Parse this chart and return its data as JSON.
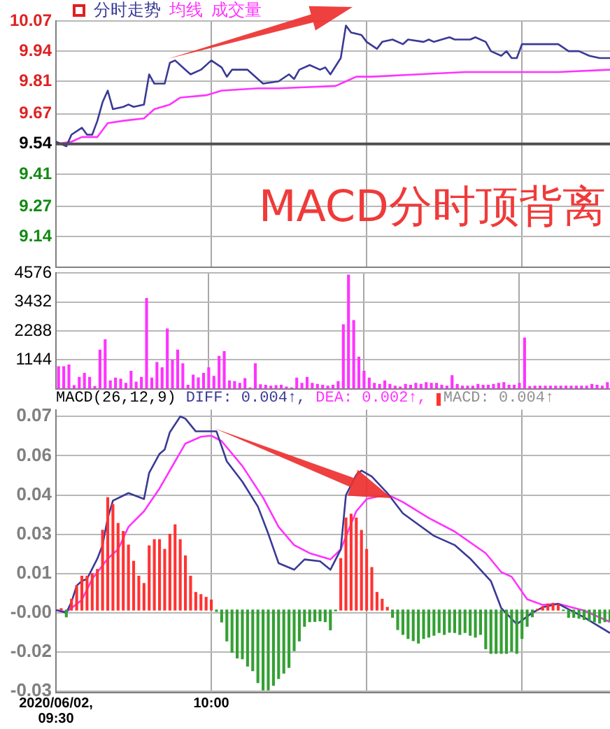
{
  "chart_data": [
    {
      "type": "line",
      "legend": "top left",
      "grid": true,
      "tick_labels": "y",
      "categories": [
        null,
        null,
        null,
        null,
        null,
        null,
        null,
        null,
        null,
        null,
        null,
        null,
        null,
        null,
        null,
        null,
        null,
        null,
        null,
        null,
        null,
        null,
        null,
        null,
        null,
        null,
        null,
        null,
        null,
        null,
        null,
        null,
        null,
        null,
        null,
        null,
        null,
        null,
        null,
        null,
        null,
        null,
        null,
        null,
        null,
        null,
        null,
        null,
        null,
        null,
        null,
        null,
        null,
        null,
        null,
        null,
        null,
        null,
        null,
        null,
        null,
        null,
        null,
        null,
        null,
        null,
        null,
        null,
        null,
        null,
        null,
        null,
        null,
        null,
        null,
        null,
        null,
        null,
        null,
        null,
        null,
        null,
        null,
        null,
        null,
        null,
        null,
        null,
        null,
        null,
        null,
        null,
        null,
        null,
        null,
        null,
        null,
        null,
        null,
        null,
        null,
        null,
        null,
        null,
        null,
        null,
        null,
        null
      ],
      "ylim": [
        9.01,
        10.07
      ],
      "yticks": [
        9.14,
        9.27,
        9.41,
        9.54,
        9.67,
        9.81,
        9.94,
        10.07
      ],
      "ref_lines": [
        {
          "axis": "y",
          "value": 9.54,
          "color": "#505050"
        }
      ],
      "annotations": [
        "MACD分时顶背离"
      ],
      "series": [
        {
          "name": "分时走势",
          "color": "#3a3a96",
          "values": [
            9.55,
            null,
            9.53,
            9.58,
            null,
            9.61,
            9.58,
            9.58,
            9.64,
            9.72,
            9.77,
            9.69,
            null,
            9.7,
            9.71,
            9.7,
            null,
            9.71,
            9.84,
            9.8,
            null,
            9.8,
            9.89,
            9.9,
            null,
            9.86,
            9.84,
            null,
            9.86,
            null,
            9.9,
            null,
            9.87,
            9.83,
            9.86,
            null,
            null,
            9.86,
            null,
            9.82,
            9.8,
            null,
            null,
            9.81,
            null,
            9.84,
            9.82,
            9.86,
            null,
            9.88,
            null,
            9.86,
            9.87,
            9.84,
            null,
            9.91,
            10.05,
            10.02,
            null,
            10.01,
            9.98,
            null,
            9.95,
            9.98,
            null,
            9.99,
            null,
            9.97,
            9.99,
            null,
            null,
            9.98,
            9.99,
            9.98,
            null,
            null,
            10.0,
            9.99,
            null,
            null,
            9.99,
            10.0,
            null,
            9.98,
            9.94,
            null,
            9.92,
            9.94,
            9.91,
            9.91,
            9.97,
            null,
            null,
            null,
            null,
            null,
            null,
            9.97,
            null,
            9.94,
            null,
            9.94,
            null,
            9.92,
            null,
            9.91,
            null,
            9.91
          ]
        },
        {
          "name": "均线",
          "color": "#ff33ff",
          "values": [
            9.54,
            null,
            null,
            9.55,
            null,
            9.57,
            null,
            null,
            9.57,
            null,
            9.63,
            null,
            null,
            9.64,
            null,
            null,
            null,
            9.65,
            null,
            9.69,
            null,
            null,
            9.71,
            null,
            9.74,
            null,
            null,
            null,
            null,
            9.75,
            null,
            null,
            9.77,
            null,
            null,
            null,
            null,
            null,
            null,
            9.78,
            null,
            null,
            null,
            9.78,
            null,
            null,
            null,
            null,
            null,
            null,
            null,
            null,
            null,
            null,
            9.79,
            null,
            9.81,
            null,
            9.83,
            null,
            null,
            9.83,
            null,
            null,
            null,
            null,
            null,
            null,
            null,
            null,
            9.84,
            null,
            null,
            null,
            null,
            null,
            null,
            null,
            null,
            9.85,
            null,
            null,
            null,
            null,
            null,
            null,
            null,
            null,
            9.85,
            null,
            null,
            null,
            null,
            null,
            null,
            null,
            null,
            9.85,
            null,
            null,
            null,
            null,
            null,
            null,
            null,
            null,
            null,
            9.86
          ]
        }
      ]
    },
    {
      "type": "bar",
      "legend": "top left",
      "grid": true,
      "tick_labels": "y",
      "categories": [
        null,
        null,
        null,
        null,
        null,
        null,
        null,
        null,
        null,
        null,
        null,
        null,
        null,
        null,
        null,
        null,
        null,
        null,
        null,
        null,
        null,
        null,
        null,
        null,
        null,
        null,
        null,
        null,
        null,
        null,
        null,
        null,
        null,
        null,
        null,
        null,
        null,
        null,
        null,
        null,
        null,
        null,
        null,
        null,
        null,
        null,
        null,
        null,
        null,
        null,
        null,
        null,
        null,
        null,
        null,
        null,
        null,
        null,
        null,
        null,
        null,
        null,
        null,
        null,
        null,
        null,
        null,
        null,
        null,
        null,
        null,
        null,
        null,
        null,
        null,
        null,
        null,
        null,
        null,
        null,
        null,
        null,
        null,
        null,
        null,
        null,
        null,
        null,
        null,
        null,
        null,
        null,
        null,
        null,
        null,
        null,
        null,
        null,
        null,
        null,
        null,
        null,
        null,
        null,
        null,
        null,
        null
      ],
      "ylim": [
        0,
        4576
      ],
      "yticks": [
        1144,
        2288,
        3432,
        4576
      ],
      "series": [
        {
          "name": "成交量",
          "color": "#ff33ff",
          "values": [
            870,
            870,
            940,
            120,
            450,
            610,
            450,
            90,
            1530,
            1940,
            310,
            420,
            380,
            210,
            690,
            260,
            450,
            3570,
            420,
            1040,
            830,
            2370,
            1130,
            1530,
            990,
            140,
            540,
            430,
            610,
            830,
            490,
            1280,
            1470,
            310,
            280,
            210,
            400,
            30,
            990,
            160,
            140,
            100,
            120,
            140,
            70,
            30,
            420,
            210,
            450,
            210,
            170,
            140,
            100,
            140,
            280,
            2530,
            4500,
            2700,
            1250,
            690,
            420,
            210,
            170,
            310,
            170,
            100,
            70,
            170,
            140,
            210,
            170,
            240,
            210,
            210,
            140,
            100,
            520,
            170,
            100,
            100,
            100,
            170,
            140,
            140,
            170,
            210,
            240,
            140,
            140,
            210,
            2010,
            90,
            100,
            100,
            100,
            100,
            100,
            100,
            100,
            100,
            100,
            100,
            100,
            170,
            140,
            100,
            240
          ]
        }
      ]
    },
    {
      "type": "line",
      "title": "MACD(26,12,9)",
      "legend": "top",
      "grid": true,
      "xlim": [
        "2020-06-02T09:30",
        "2020-06-02T11:17"
      ],
      "xticks": [
        {
          "value": "2020-06-02T09:30",
          "label": "2020/06/02, 09:30"
        },
        {
          "value": "2020-06-02T10:00",
          "label": "10:00"
        },
        {
          "value": "2020-06-02T10:30",
          "label": null
        },
        {
          "value": "2020-06-02T11:00",
          "label": null
        }
      ],
      "ylim": [
        -0.0305,
        0.074
      ],
      "yticks": [
        {
          "value": -0.03,
          "label": "-0.03"
        },
        {
          "value": -0.0155,
          "label": "-0.02"
        },
        {
          "value": -0.001,
          "label": "-0.00"
        },
        {
          "value": 0.0135,
          "label": "0.01"
        },
        {
          "value": 0.028,
          "label": "0.03"
        },
        {
          "value": 0.0425,
          "label": "0.04"
        },
        {
          "value": 0.057,
          "label": "0.06"
        },
        {
          "value": 0.0715,
          "label": "0.07"
        }
      ],
      "x": [
        "2020-06-02T09:31",
        "2020-06-02T09:32",
        "2020-06-02T09:33",
        "2020-06-02T09:34",
        "2020-06-02T09:35",
        "2020-06-02T09:36",
        "2020-06-02T09:37",
        "2020-06-02T09:38",
        "2020-06-02T09:39",
        "2020-06-02T09:40",
        "2020-06-02T09:41",
        "2020-06-02T09:42",
        "2020-06-02T09:43",
        "2020-06-02T09:44",
        "2020-06-02T09:45",
        "2020-06-02T09:46",
        "2020-06-02T09:47",
        "2020-06-02T09:48",
        "2020-06-02T09:49",
        "2020-06-02T09:50",
        "2020-06-02T09:51",
        "2020-06-02T09:52",
        "2020-06-02T09:53",
        "2020-06-02T09:54",
        "2020-06-02T09:55",
        "2020-06-02T09:56",
        "2020-06-02T09:57",
        "2020-06-02T09:58",
        "2020-06-02T09:59",
        "2020-06-02T10:00",
        "2020-06-02T10:01",
        "2020-06-02T10:02",
        "2020-06-02T10:03",
        "2020-06-02T10:04",
        "2020-06-02T10:05",
        "2020-06-02T10:06",
        "2020-06-02T10:07",
        "2020-06-02T10:08",
        "2020-06-02T10:09",
        "2020-06-02T10:10",
        "2020-06-02T10:11",
        "2020-06-02T10:12",
        "2020-06-02T10:13",
        "2020-06-02T10:14",
        "2020-06-02T10:15",
        "2020-06-02T10:16",
        "2020-06-02T10:17",
        "2020-06-02T10:18",
        "2020-06-02T10:19",
        "2020-06-02T10:20",
        "2020-06-02T10:21",
        "2020-06-02T10:22",
        "2020-06-02T10:23",
        "2020-06-02T10:24",
        "2020-06-02T10:25",
        "2020-06-02T10:26",
        "2020-06-02T10:27",
        "2020-06-02T10:28",
        "2020-06-02T10:29",
        "2020-06-02T10:30",
        "2020-06-02T10:31",
        "2020-06-02T10:32",
        "2020-06-02T10:33",
        "2020-06-02T10:34",
        "2020-06-02T10:35",
        "2020-06-02T10:36",
        "2020-06-02T10:37",
        "2020-06-02T10:38",
        "2020-06-02T10:39",
        "2020-06-02T10:40",
        "2020-06-02T10:41",
        "2020-06-02T10:42",
        "2020-06-02T10:43",
        "2020-06-02T10:44",
        "2020-06-02T10:45",
        "2020-06-02T10:46",
        "2020-06-02T10:47",
        "2020-06-02T10:48",
        "2020-06-02T10:49",
        "2020-06-02T10:50",
        "2020-06-02T10:51",
        "2020-06-02T10:52",
        "2020-06-02T10:53",
        "2020-06-02T10:54",
        "2020-06-02T10:55",
        "2020-06-02T10:56",
        "2020-06-02T10:57",
        "2020-06-02T10:58",
        "2020-06-02T10:59",
        "2020-06-02T11:00",
        "2020-06-02T11:01",
        "2020-06-02T11:02",
        "2020-06-02T11:03",
        "2020-06-02T11:04",
        "2020-06-02T11:05",
        "2020-06-02T11:06",
        "2020-06-02T11:07",
        "2020-06-02T11:08",
        "2020-06-02T11:09",
        "2020-06-02T11:10",
        "2020-06-02T11:11",
        "2020-06-02T11:12",
        "2020-06-02T11:13",
        "2020-06-02T11:14",
        "2020-06-02T11:15",
        "2020-06-02T11:16",
        "2020-06-02T11:17"
      ],
      "series": [
        {
          "name": "MACD: 0.004↑",
          "type": "bar",
          "colors": [
            "#ff3333",
            "#33a033",
            "#ff3333",
            "#ff3333",
            "#ff3333",
            "#ff3333",
            "#ff3333",
            "#ff3333",
            "#ff3333",
            "#ff3333",
            "#ff3333",
            "#ff3333",
            "#ff3333",
            "#ff3333",
            "#ff3333",
            "#ff3333",
            "#ff3333",
            "#ff3333",
            "#ff3333",
            "#ff3333",
            "#ff3333",
            "#ff3333",
            "#ff3333",
            "#ff3333",
            "#ff3333",
            "#ff3333",
            "#ff3333",
            "#ff3333",
            "#ff3333",
            "#ff3333",
            "#33a033",
            "#33a033",
            "#33a033",
            "#33a033",
            "#33a033",
            "#33a033",
            "#33a033",
            "#33a033",
            "#33a033",
            "#33a033",
            "#33a033",
            "#33a033",
            "#33a033",
            "#33a033",
            "#33a033",
            "#33a033",
            "#33a033",
            "#33a033",
            "#33a033",
            "#33a033",
            "#33a033",
            "#33a033",
            "#33a033",
            "#33a033",
            "#ff3333",
            "#ff3333",
            "#ff3333",
            "#ff3333",
            "#ff3333",
            "#ff3333",
            "#ff3333",
            "#ff3333",
            "#ff3333",
            "#ff3333",
            "#33a033",
            "#33a033",
            "#33a033",
            "#33a033",
            "#33a033",
            "#33a033",
            "#33a033",
            "#33a033",
            "#33a033",
            "#33a033",
            "#33a033",
            "#33a033",
            "#33a033",
            "#33a033",
            "#33a033",
            "#33a033",
            "#33a033",
            "#33a033",
            "#33a033",
            "#33a033",
            "#33a033",
            "#33a033",
            "#33a033",
            "#33a033",
            "#33a033",
            "#33a033",
            "#33a033",
            "#33a033",
            "#ff3333",
            "#ff3333",
            "#ff3333",
            "#ff3333",
            "#ff3333",
            "#33a033",
            "#33a033",
            "#33a033",
            "#33a033",
            "#33a033",
            "#33a033",
            "#33a033",
            "#33a033",
            "#33a033",
            "#33a033"
          ],
          "values": [
            0.0005,
            -0.0025,
            0.004,
            0.009,
            0.0125,
            0.0125,
            0.0135,
            0.015,
            0.0295,
            0.0415,
            0.039,
            0.032,
            0.029,
            0.024,
            0.018,
            0.0125,
            0.0098,
            0.0237,
            0.026,
            0.026,
            0.0224,
            0.028,
            0.0315,
            0.026,
            0.02,
            0.0125,
            0.0065,
            0.0057,
            0.0047,
            0.0037,
            -0.0005,
            -0.0044,
            -0.0114,
            -0.0156,
            -0.0177,
            -0.018,
            -0.0207,
            -0.0224,
            -0.0268,
            -0.0295,
            -0.0295,
            -0.0278,
            -0.0253,
            -0.0233,
            -0.0212,
            -0.015,
            -0.0114,
            -0.006,
            -0.0043,
            -0.0042,
            -0.004,
            -0.0043,
            -0.0073,
            -0.0003,
            0.019,
            0.034,
            0.0354,
            0.034,
            0.0294,
            0.0224,
            0.0157,
            0.0065,
            0.004,
            0.001,
            -0.0027,
            -0.0072,
            -0.009,
            -0.0105,
            -0.0113,
            -0.0122,
            -0.0105,
            -0.01,
            -0.0093,
            -0.0083,
            -0.009,
            -0.0082,
            -0.0083,
            -0.009,
            -0.0083,
            -0.0093,
            -0.01,
            -0.009,
            -0.0143,
            -0.016,
            -0.016,
            -0.016,
            -0.016,
            -0.0152,
            -0.016,
            -0.0105,
            -0.006,
            -0.0025,
            0.0003,
            0.0013,
            0.0022,
            0.0025,
            0.002,
            -0.0002,
            -0.0027,
            -0.0027,
            -0.003,
            -0.0035,
            -0.004,
            -0.0043,
            -0.0048,
            -0.0043,
            -0.004
          ]
        },
        {
          "name": "DIFF: 0.004↑,",
          "color": "#3a3a96",
          "x": [
            "2020-06-02T09:30",
            "2020-06-02T09:32",
            "2020-06-02T09:33",
            "2020-06-02T09:34",
            "2020-06-02T09:35",
            "2020-06-02T09:36",
            "2020-06-02T09:38",
            "2020-06-02T09:39",
            "2020-06-02T09:40",
            "2020-06-02T09:41",
            "2020-06-02T09:44",
            "2020-06-02T09:47",
            "2020-06-02T09:48",
            "2020-06-02T09:50",
            "2020-06-02T09:51",
            "2020-06-02T09:52",
            "2020-06-02T09:54",
            "2020-06-02T09:55",
            "2020-06-02T09:57",
            "2020-06-02T10:01",
            "2020-06-02T10:03",
            "2020-06-02T10:06",
            "2020-06-02T10:09",
            "2020-06-02T10:11",
            "2020-06-02T10:13",
            "2020-06-02T10:16",
            "2020-06-02T10:18",
            "2020-06-02T10:21",
            "2020-06-02T10:23",
            "2020-06-02T10:25",
            "2020-06-02T10:26",
            "2020-06-02T10:28",
            "2020-06-02T10:29",
            "2020-06-02T10:31",
            "2020-06-02T10:34",
            "2020-06-02T10:37",
            "2020-06-02T10:43",
            "2020-06-02T10:47",
            "2020-06-02T10:50",
            "2020-06-02T10:54",
            "2020-06-02T10:56",
            "2020-06-02T10:59",
            "2020-06-02T11:02",
            "2020-06-02T11:04",
            "2020-06-02T11:07",
            "2020-06-02T11:09",
            "2020-06-02T11:12",
            "2020-06-02T11:17"
          ],
          "values": [
            0,
            -0.001,
            0.003,
            0.009,
            0.0107,
            0.0115,
            0.019,
            0.024,
            0.034,
            0.0404,
            0.0432,
            0.041,
            0.0507,
            0.0577,
            0.0593,
            0.0657,
            0.0715,
            0.0707,
            0.066,
            0.066,
            0.0549,
            0.0474,
            0.0382,
            0.0282,
            0.0173,
            0.0149,
            0.0187,
            0.018,
            0.0149,
            0.0224,
            0.0424,
            0.0499,
            0.0515,
            0.0493,
            0.0432,
            0.0357,
            0.0274,
            0.024,
            0.019,
            0.0107,
            0.0007,
            -0.0052,
            -0.001,
            0.001,
            0.0023,
            0.0003,
            -0.0027,
            -0.0085
          ]
        },
        {
          "name": "DEA: 0.002↑,",
          "color": "#ff33ff",
          "x": [
            "2020-06-02T09:30",
            "2020-06-02T09:32",
            "2020-06-02T09:35",
            "2020-06-02T09:37",
            "2020-06-02T09:40",
            "2020-06-02T09:42",
            "2020-06-02T09:44",
            "2020-06-02T09:47",
            "2020-06-02T09:50",
            "2020-06-02T09:53",
            "2020-06-02T09:55",
            "2020-06-02T09:58",
            "2020-06-02T10:00",
            "2020-06-02T10:02",
            "2020-06-02T10:06",
            "2020-06-02T10:10",
            "2020-06-02T10:13",
            "2020-06-02T10:16",
            "2020-06-02T10:19",
            "2020-06-02T10:23",
            "2020-06-02T10:25",
            "2020-06-02T10:28",
            "2020-06-02T10:30",
            "2020-06-02T10:34",
            "2020-06-02T10:37",
            "2020-06-02T10:42",
            "2020-06-02T10:47",
            "2020-06-02T10:53",
            "2020-06-02T10:56",
            "2020-06-02T10:58",
            "2020-06-02T11:01",
            "2020-06-02T11:04",
            "2020-06-02T11:07",
            "2020-06-02T11:12",
            "2020-06-02T11:17"
          ],
          "values": [
            0,
            -0.0007,
            0.0037,
            0.0115,
            0.019,
            0.0224,
            0.0307,
            0.0365,
            0.0449,
            0.0549,
            0.0615,
            0.064,
            0.0644,
            0.0624,
            0.0532,
            0.0415,
            0.0307,
            0.024,
            0.021,
            0.0187,
            0.0224,
            0.0365,
            0.041,
            0.0427,
            0.0399,
            0.034,
            0.029,
            0.021,
            0.014,
            0.0123,
            0.004,
            0.0019,
            0.0023,
            -0.0002,
            -0.0044
          ]
        }
      ]
    }
  ]
}
